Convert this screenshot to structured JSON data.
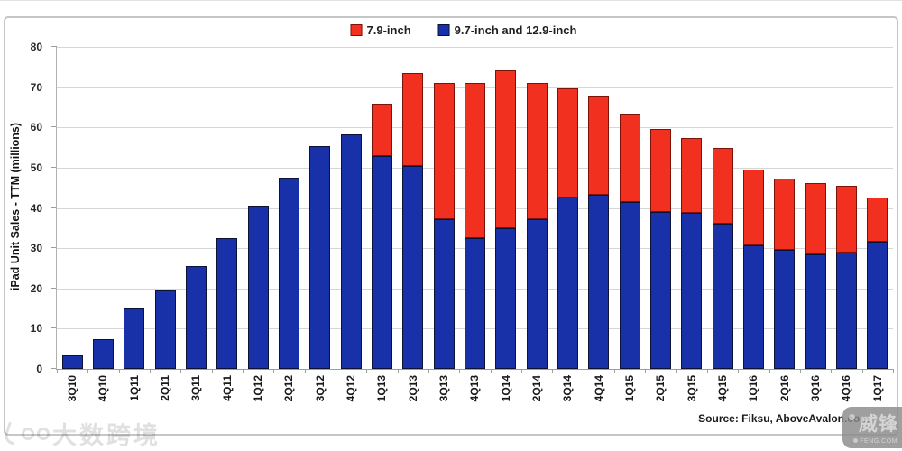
{
  "legend": {
    "items": [
      {
        "label": "7.9-inch"
      },
      {
        "label": "9.7-inch and 12.9-inch"
      }
    ]
  },
  "axis": {
    "y_ticks": [
      0,
      10,
      20,
      30,
      40,
      50,
      60,
      70,
      80
    ]
  },
  "chart_data": {
    "type": "bar",
    "stacked": true,
    "title": "",
    "xlabel": "",
    "ylabel": "iPad Unit Sales - TTM (millions)",
    "ylim": [
      0,
      80
    ],
    "ytick_step": 10,
    "grid": true,
    "legend_position": "top-center",
    "categories": [
      "3Q10",
      "4Q10",
      "1Q11",
      "2Q11",
      "3Q11",
      "4Q11",
      "1Q12",
      "2Q12",
      "3Q12",
      "4Q12",
      "1Q13",
      "2Q13",
      "3Q13",
      "4Q13",
      "1Q14",
      "2Q14",
      "3Q14",
      "4Q14",
      "1Q15",
      "2Q15",
      "3Q15",
      "4Q15",
      "1Q16",
      "2Q16",
      "3Q16",
      "4Q16",
      "1Q17"
    ],
    "series": [
      {
        "name": "7.9-inch",
        "color": "#f2301f",
        "border_color": "#7d120a",
        "values": [
          0,
          0,
          0,
          0,
          0,
          0,
          0,
          0,
          0,
          0,
          13.0,
          23.0,
          33.8,
          38.5,
          39.3,
          33.9,
          27.3,
          24.7,
          22.0,
          20.7,
          18.5,
          18.8,
          18.8,
          17.6,
          17.7,
          16.7,
          10.9
        ]
      },
      {
        "name": "9.7-inch and 12.9-inch",
        "color": "#1931a8",
        "border_color": "#0c1236",
        "values": [
          3.3,
          7.3,
          15.0,
          19.6,
          25.5,
          32.4,
          40.5,
          47.6,
          55.4,
          58.3,
          52.8,
          50.4,
          37.2,
          32.5,
          34.9,
          37.2,
          42.5,
          43.3,
          41.4,
          38.9,
          38.8,
          36.1,
          30.8,
          29.6,
          28.5,
          28.9,
          31.6
        ]
      }
    ]
  },
  "footer": {
    "source": "Source: Fiksu, AboveAvalon.com"
  },
  "watermarks": {
    "left": {
      "text": "大数跨境"
    },
    "right": {
      "text": "威锋",
      "subtext": "FENG.COM"
    }
  }
}
